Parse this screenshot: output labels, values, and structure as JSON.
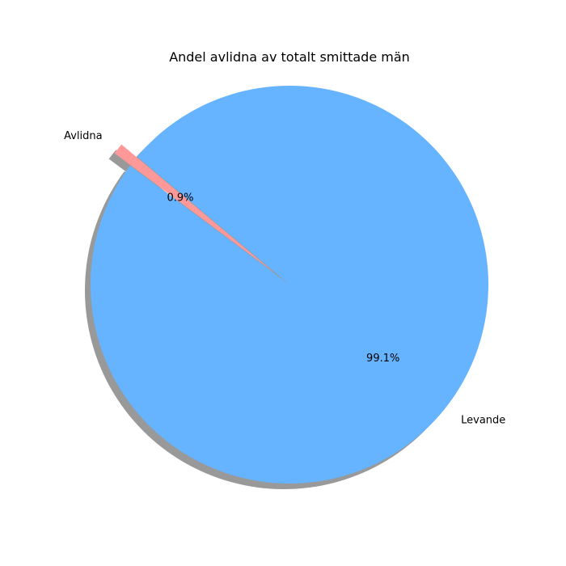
{
  "chart_data": {
    "type": "pie",
    "title": "Andel avlidna av totalt smittade män",
    "slices": [
      {
        "label": "Avlidna",
        "value": 0.9,
        "pct_label": "0.9%",
        "color": "#ff9999",
        "exploded": true
      },
      {
        "label": "Levande",
        "value": 99.1,
        "pct_label": "99.1%",
        "color": "#66b3ff",
        "exploded": false
      }
    ],
    "shadow": true,
    "start_angle_deg": 140,
    "legend": "none"
  }
}
